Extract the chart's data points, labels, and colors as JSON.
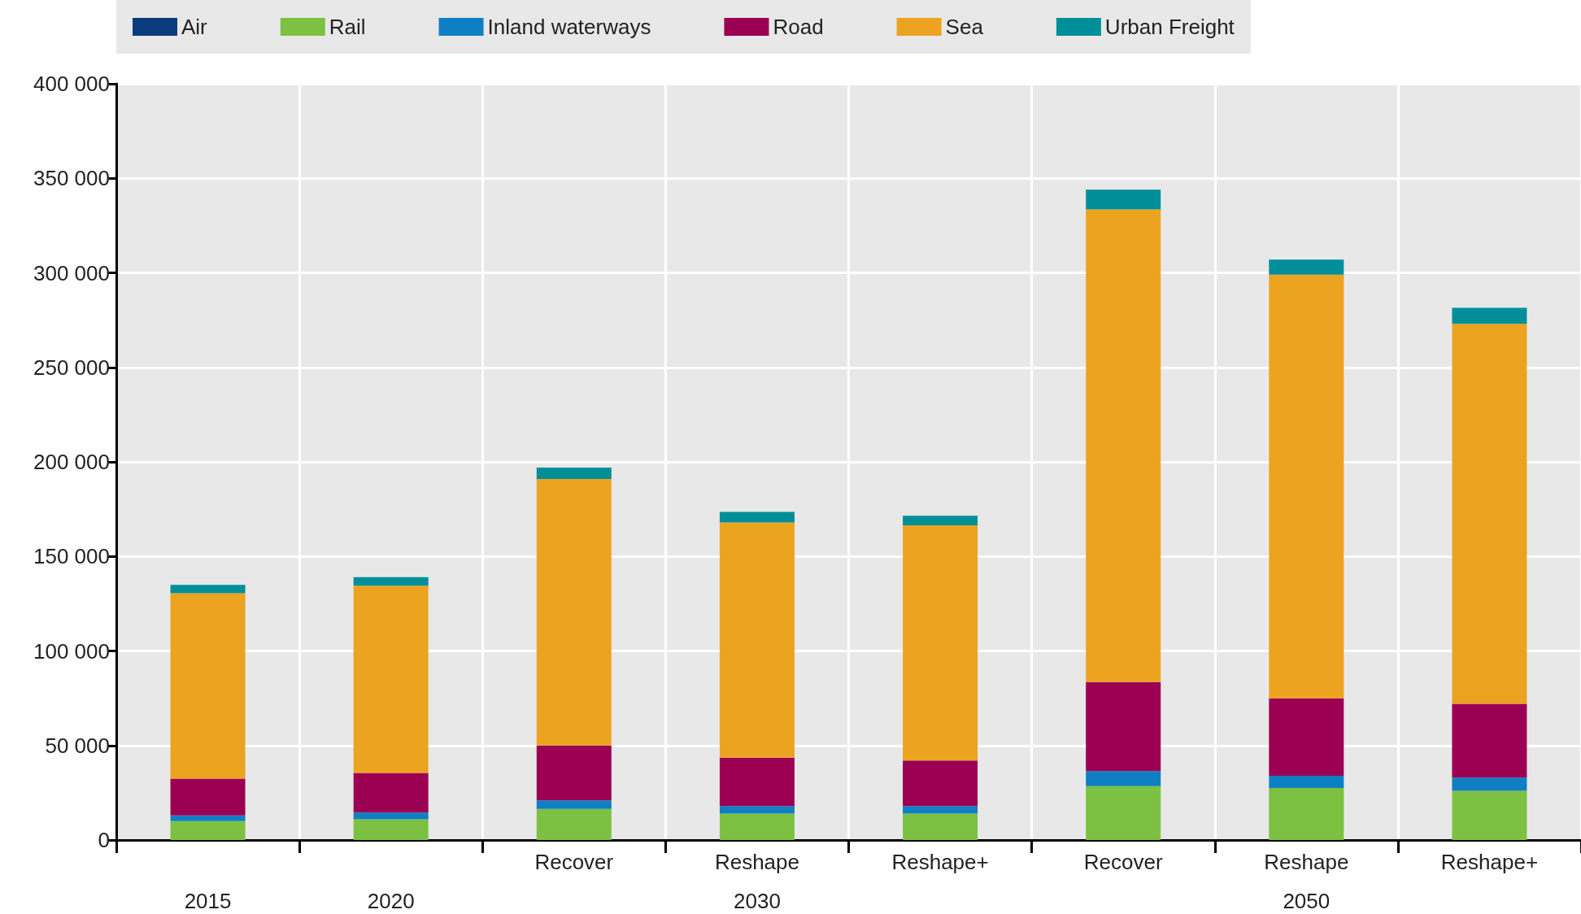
{
  "chart_data": {
    "type": "bar",
    "stacked": true,
    "categories": [
      "2015",
      "2020",
      "Recover",
      "Reshape",
      "Reshape+",
      "Recover",
      "Reshape",
      "Reshape+"
    ],
    "annotations": [
      "2030",
      "2050"
    ],
    "series": [
      {
        "name": "Air",
        "color": "#0b3d7c",
        "values": [
          null,
          null,
          null,
          null,
          null,
          null,
          null,
          null
        ]
      },
      {
        "name": "Rail",
        "color": "#7cc142",
        "values": [
          10000,
          11000,
          16500,
          14000,
          14000,
          28500,
          27500,
          26000
        ]
      },
      {
        "name": "Inland waterways",
        "color": "#0f7fc4",
        "values": [
          3000,
          3500,
          4500,
          4000,
          4000,
          8000,
          6500,
          7000
        ]
      },
      {
        "name": "Road",
        "color": "#9b0053",
        "values": [
          19500,
          21000,
          29000,
          25500,
          24000,
          47000,
          41000,
          39000
        ]
      },
      {
        "name": "Sea",
        "color": "#eca320",
        "values": [
          98000,
          99000,
          141000,
          124500,
          124500,
          250000,
          224000,
          201000
        ]
      },
      {
        "name": "Urban Freight",
        "color": "#008f99",
        "values": [
          4500,
          4500,
          6000,
          5500,
          5000,
          10500,
          8000,
          8500
        ]
      }
    ],
    "ylim": [
      0,
      400000
    ],
    "yticks": [
      {
        "value": 0,
        "label": "0"
      },
      {
        "value": 50000,
        "label": "50 000"
      },
      {
        "value": 100000,
        "label": "100 000"
      },
      {
        "value": 150000,
        "label": "150 000"
      },
      {
        "value": 200000,
        "label": "200 000"
      },
      {
        "value": 250000,
        "label": "250 000"
      },
      {
        "value": 300000,
        "label": "300 000"
      },
      {
        "value": 350000,
        "label": "350 000"
      },
      {
        "value": 400000,
        "label": "400 000"
      }
    ],
    "grid": true,
    "legend": "top"
  }
}
